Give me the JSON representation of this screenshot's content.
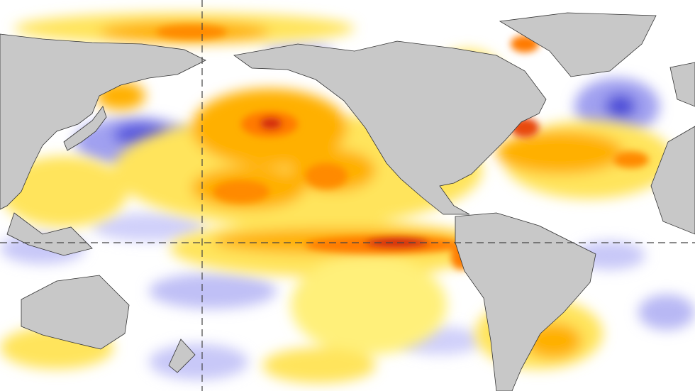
{
  "map": {
    "colors": {
      "background": "#ffffff",
      "land": "#c8c8c8",
      "coastline": "#333333",
      "warm_weak": "#ffe45c",
      "warm_mid": "#ffb000",
      "warm_strong": "#ff7a00",
      "warm_extreme": "#d42a10",
      "cool_weak": "#c8c8f8",
      "cool_mid": "#8c8cf0",
      "cool_strong": "#4a4ad8"
    },
    "reference_lines": [
      "equator",
      "dateline"
    ]
  }
}
